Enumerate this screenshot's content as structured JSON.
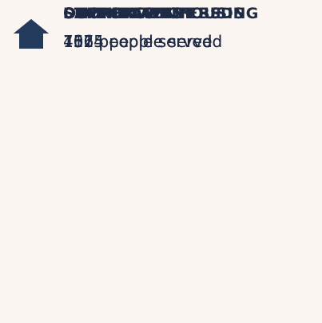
{
  "items": [
    {
      "label": "OUTREACH",
      "count": "1064",
      "unit": "people served",
      "color": "#ffa547"
    },
    {
      "label": "DROP-IN CENTERS",
      "count": "1665",
      "unit": "people served",
      "color": "#ff6a10"
    },
    {
      "label": "STABILIZATION BEDS",
      "count": "111",
      "unit": "people served",
      "color": "#ffa35e"
    },
    {
      "label": "SAFE HAVENS",
      "count": "457",
      "unit": "people served",
      "color": "#0b5bd3"
    },
    {
      "label": "SUPPORTIVE HOUSING",
      "count": "732",
      "unit": "people served",
      "color": "#243a5c"
    }
  ]
}
